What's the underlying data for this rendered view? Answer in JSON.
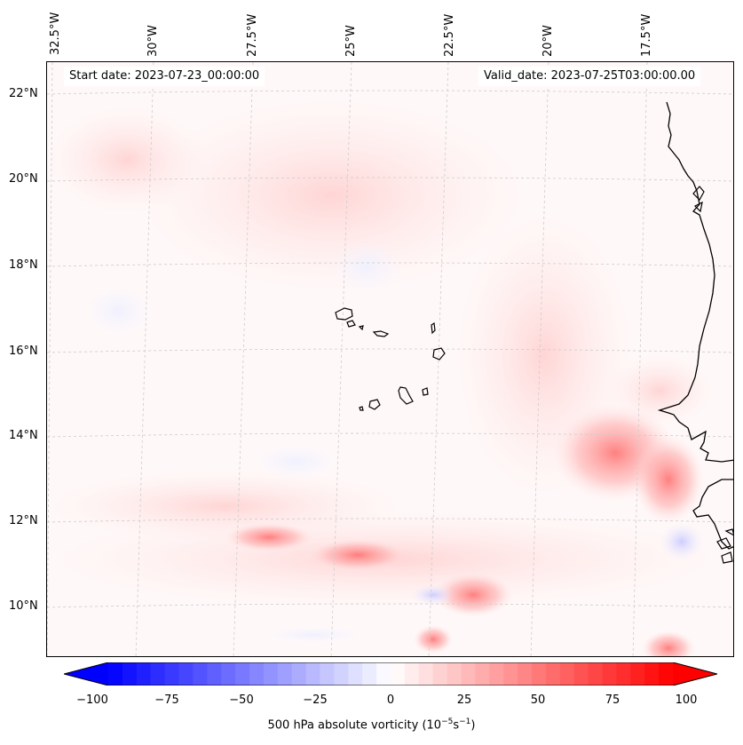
{
  "header": {
    "start_date": "Start date: 2023-07-23_00:00:00",
    "valid_date": "Valid_date: 2023-07-25T03:00:00.00"
  },
  "longitude_labels": [
    "32.5°W",
    "30°W",
    "27.5°W",
    "25°W",
    "22.5°W",
    "20°W",
    "17.5°W"
  ],
  "latitude_labels": [
    "22°N",
    "20°N",
    "18°N",
    "16°N",
    "14°N",
    "12°N",
    "10°N"
  ],
  "colorbar": {
    "label_prefix": "500 hPa absolute vorticity (10",
    "label_exp1": "−5",
    "label_mid": "s",
    "label_exp2": "−1",
    "label_suffix": ")",
    "ticks": [
      "−100",
      "−75",
      "−50",
      "−25",
      "0",
      "25",
      "50",
      "75",
      "100"
    ],
    "min": -100,
    "max": 100,
    "negative_color": "#0000ff",
    "positive_color": "#ff0000"
  },
  "colors": {
    "background": "#fff8f8",
    "coastline": "#000000",
    "gridline": "#cccccc"
  }
}
